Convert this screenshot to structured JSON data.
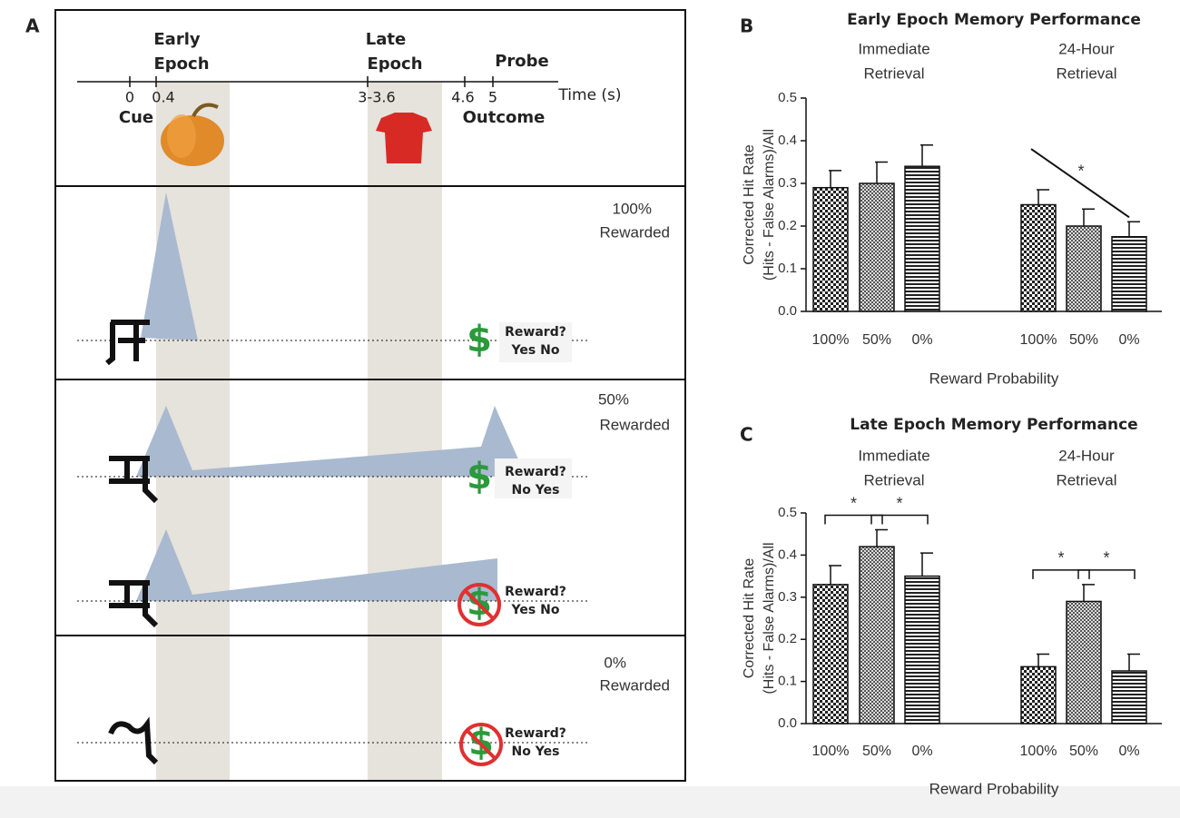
{
  "panel_a": {
    "letter": "A",
    "early": [
      "Early",
      "Epoch"
    ],
    "late": [
      "Late",
      "Epoch"
    ],
    "probe": "Probe",
    "ticks": [
      "0",
      "0.4",
      "3-3.6",
      "4.6",
      "5"
    ],
    "axis_label": "Time (s)",
    "cue": "Cue",
    "outcome": "Outcome",
    "dollar": "$",
    "conditions": [
      {
        "label": [
          "100%",
          "Rewarded"
        ],
        "trials": [
          {
            "prompt": "Reward?",
            "choices": "Yes No"
          }
        ]
      },
      {
        "label": [
          "50%",
          "Rewarded"
        ],
        "trials": [
          {
            "prompt": "Reward?",
            "choices": "No Yes"
          },
          {
            "prompt": "Reward?",
            "choices": "Yes No"
          }
        ]
      },
      {
        "label": [
          "0%",
          "Rewarded"
        ],
        "trials": [
          {
            "prompt": "Reward?",
            "choices": "No Yes"
          }
        ]
      }
    ]
  },
  "chart_data": [
    {
      "type": "bar",
      "letter": "B",
      "title": "Early Epoch Memory Performance",
      "groups": [
        [
          "Immediate",
          "Retrieval"
        ],
        [
          "24-Hour",
          "Retrieval"
        ]
      ],
      "ylabel": [
        "Corrected Hit Rate",
        "(Hits - False Alarms)/All"
      ],
      "xlabel": "Reward Probability",
      "categories": [
        "100%",
        "50%",
        "0%",
        "100%",
        "50%",
        "0%"
      ],
      "values": [
        0.29,
        0.3,
        0.34,
        0.25,
        0.2,
        0.175
      ],
      "errors": [
        0.04,
        0.05,
        0.05,
        0.035,
        0.04,
        0.035
      ],
      "patterns": [
        "checker",
        "dots",
        "stripes",
        "checker",
        "dots",
        "stripes"
      ],
      "ylim": [
        0,
        0.5
      ],
      "yticks": [
        {
          "value": 0,
          "label": "0.0"
        },
        0.1,
        0.2,
        0.3,
        0.4,
        0.5
      ],
      "trend": {
        "from": 3,
        "to": 5,
        "label": "*"
      }
    },
    {
      "type": "bar",
      "letter": "C",
      "title": "Late Epoch Memory Performance",
      "groups": [
        [
          "Immediate",
          "Retrieval"
        ],
        [
          "24-Hour",
          "Retrieval"
        ]
      ],
      "ylabel": [
        "Corrected Hit Rate",
        "(Hits - False Alarms)/All"
      ],
      "xlabel": "Reward Probability",
      "categories": [
        "100%",
        "50%",
        "0%",
        "100%",
        "50%",
        "0%"
      ],
      "values": [
        0.33,
        0.42,
        0.35,
        0.135,
        0.29,
        0.125
      ],
      "errors": [
        0.045,
        0.04,
        0.055,
        0.03,
        0.04,
        0.04
      ],
      "patterns": [
        "checker",
        "dots",
        "stripes",
        "checker",
        "dots",
        "stripes"
      ],
      "ylim": [
        0,
        0.5
      ],
      "yticks": [
        {
          "value": 0,
          "label": "0.0"
        },
        0.1,
        0.2,
        0.3,
        0.4,
        0.5
      ],
      "brackets": [
        {
          "from": 0,
          "to": 1,
          "label": "*"
        },
        {
          "from": 1,
          "to": 2,
          "label": "*"
        },
        {
          "from": 3,
          "to": 4,
          "label": "*"
        },
        {
          "from": 4,
          "to": 5,
          "label": "*"
        }
      ]
    }
  ]
}
